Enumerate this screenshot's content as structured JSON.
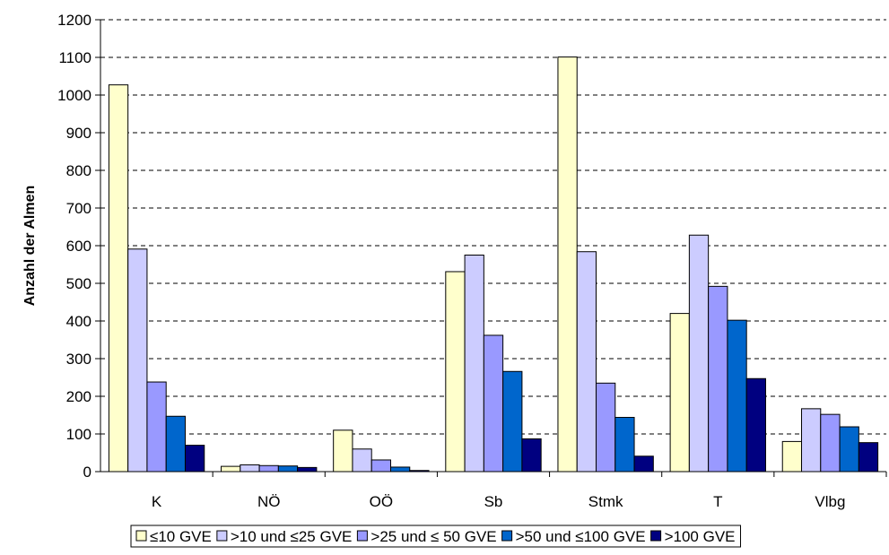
{
  "chart_data": {
    "type": "bar",
    "title": "",
    "xlabel": "",
    "ylabel": "Anzahl der Almen",
    "ylim": [
      0,
      1200
    ],
    "ytick_step": 100,
    "grid": "horizontal dashed",
    "legend_position": "bottom",
    "categories": [
      "K",
      "NÖ",
      "OÖ",
      "Sb",
      "Stmk",
      "T",
      "Vlbg"
    ],
    "series": [
      {
        "name": "≤10 GVE",
        "color": "#ffffcc",
        "values": [
          1027,
          14,
          110,
          531,
          1101,
          420,
          80
        ]
      },
      {
        "name": ">10 und ≤25 GVE",
        "color": "#ccccff",
        "values": [
          591,
          18,
          60,
          575,
          584,
          628,
          167
        ]
      },
      {
        "name": ">25 und ≤ 50 GVE",
        "color": "#9999ff",
        "values": [
          238,
          16,
          31,
          362,
          235,
          492,
          152
        ]
      },
      {
        "name": ">50 und ≤100 GVE",
        "color": "#0066cc",
        "values": [
          147,
          15,
          12,
          266,
          144,
          402,
          119
        ]
      },
      {
        "name": ">100 GVE",
        "color": "#000080",
        "values": [
          70,
          11,
          3,
          87,
          41,
          247,
          77
        ]
      }
    ]
  }
}
